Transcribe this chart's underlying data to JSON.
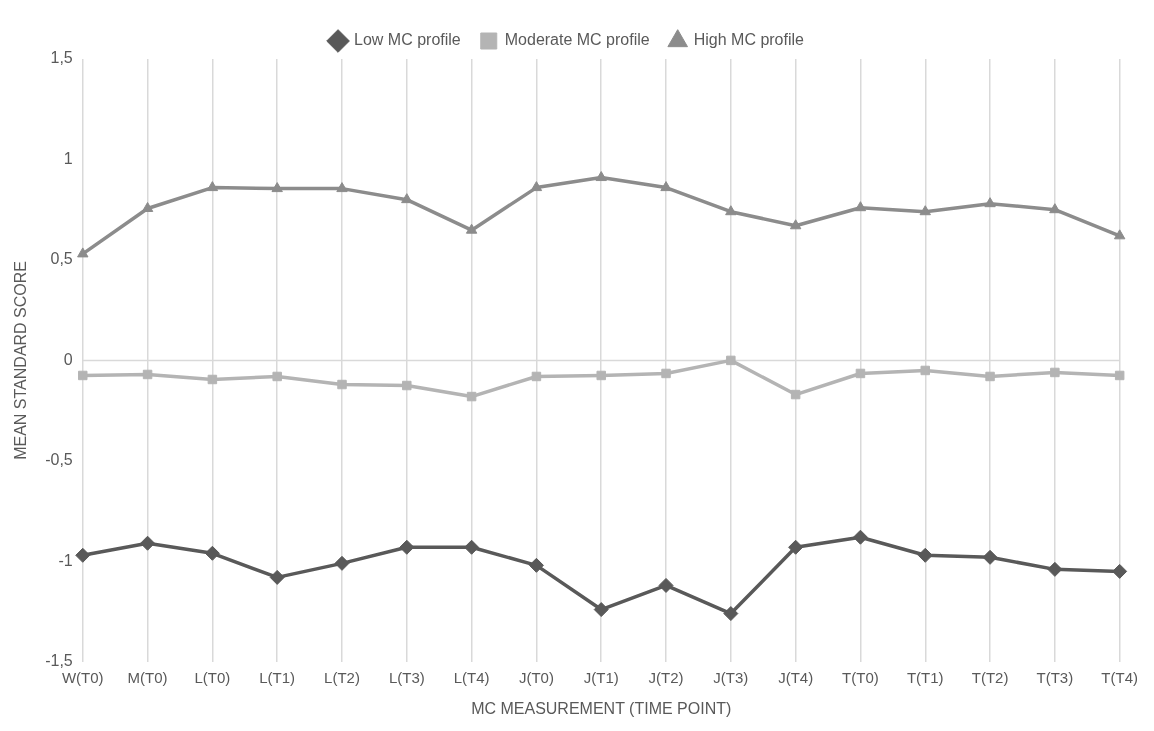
{
  "chart_data": {
    "type": "line",
    "xlabel": "MC MEASUREMENT (TIME POINT)",
    "ylabel": "MEAN STANDARD SCORE",
    "categories": [
      "W(T0)",
      "M(T0)",
      "L(T0)",
      "L(T1)",
      "L(T2)",
      "L(T3)",
      "L(T4)",
      "J(T0)",
      "J(T1)",
      "J(T2)",
      "J(T3)",
      "J(T4)",
      "T(T0)",
      "T(T1)",
      "T(T2)",
      "T(T3)",
      "T(T4)"
    ],
    "series": [
      {
        "name": "Low MC profile",
        "color": "#595959",
        "marker": "diamond",
        "values": [
          -0.97,
          -0.91,
          -0.96,
          -1.08,
          -1.01,
          -0.93,
          -0.93,
          -1.02,
          -1.24,
          -1.12,
          -1.26,
          -0.93,
          -0.88,
          -0.97,
          -0.98,
          -1.04,
          -1.05
        ]
      },
      {
        "name": "Moderate MC profile",
        "color": "#b4b4b4",
        "marker": "square",
        "values": [
          -0.075,
          -0.07,
          -0.095,
          -0.08,
          -0.12,
          -0.125,
          -0.18,
          -0.08,
          -0.075,
          -0.065,
          0.0,
          -0.17,
          -0.065,
          -0.05,
          -0.08,
          -0.06,
          -0.075
        ]
      },
      {
        "name": "High MC profile",
        "color": "#8c8c8c",
        "marker": "triangle",
        "values": [
          0.53,
          0.756,
          0.86,
          0.855,
          0.855,
          0.8,
          0.648,
          0.86,
          0.91,
          0.86,
          0.74,
          0.67,
          0.76,
          0.74,
          0.78,
          0.75,
          0.62
        ]
      }
    ],
    "ylim": [
      -1.5,
      1.5
    ],
    "yticks": [
      {
        "value": -1.5,
        "label": "-1,5"
      },
      {
        "value": -1,
        "label": "-1"
      },
      {
        "value": -0.5,
        "label": "-0,5"
      },
      {
        "value": 0,
        "label": "0"
      },
      {
        "value": 0.5,
        "label": "0,5"
      },
      {
        "value": 1,
        "label": "1"
      },
      {
        "value": 1.5,
        "label": "1,5"
      }
    ],
    "ref_lines": [
      {
        "axis": "y",
        "value": 0,
        "color": "#d9d9d9"
      }
    ],
    "grid": "x",
    "legend": "top",
    "line_style": "solid"
  }
}
